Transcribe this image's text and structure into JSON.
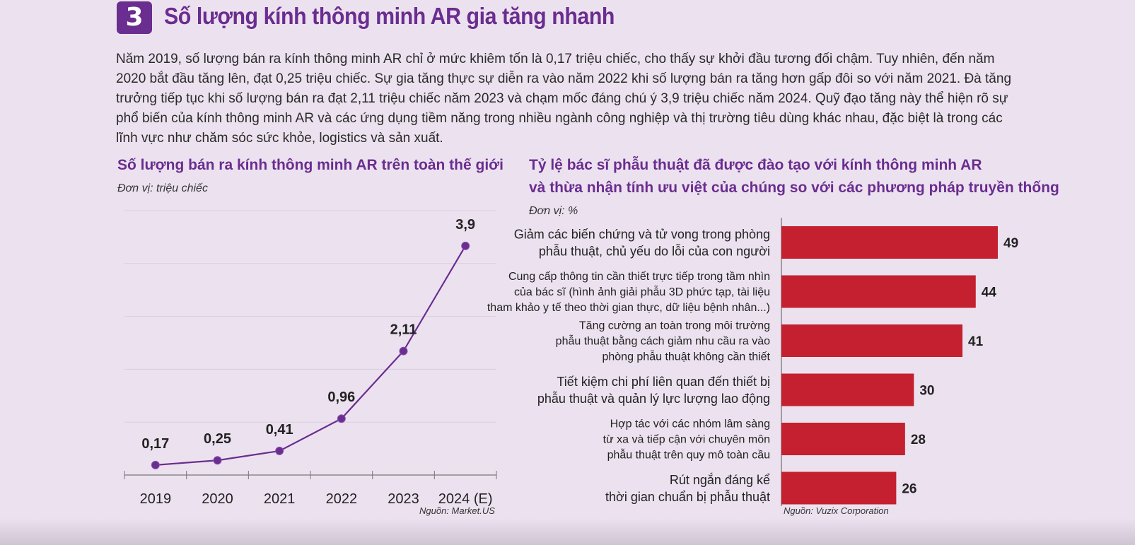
{
  "section": {
    "number": "3",
    "title": "Số lượng kính thông minh AR gia tăng nhanh",
    "intro": "Năm 2019, số lượng bán ra kính thông minh AR chỉ ở mức khiêm tốn là 0,17 triệu chiếc, cho thấy sự khởi đầu tương đối chậm. Tuy nhiên, đến năm 2020 bắt đầu tăng lên, đạt 0,25 triệu chiếc. Sự gia tăng thực sự diễn ra vào năm 2022 khi số lượng bán ra tăng hơn gấp đôi so với năm 2021. Đà tăng trưởng tiếp tục khi số lượng bán ra đạt 2,11 triệu chiếc năm 2023 và chạm mốc đáng chú ý 3,9 triệu chiếc năm 2024. Quỹ đạo tăng này thể hiện rõ sự phổ biến của kính thông minh AR và các ứng dụng tiềm năng trong nhiều ngành công nghiệp và thị trường tiêu dùng khác nhau, đặc biệt là trong các lĩnh vực như chăm sóc sức khỏe, logistics và sản xuất."
  },
  "colors": {
    "purple": "#6a2d90",
    "bar": "#c4202f",
    "grid": "#d9cde0"
  },
  "chart_data": [
    {
      "type": "line",
      "title": "Số lượng bán ra kính thông minh AR trên toàn thế giới",
      "unit": "Đơn vị: triệu chiếc",
      "source": "Nguồn: Market.US",
      "categories": [
        "2019",
        "2020",
        "2021",
        "2022",
        "2023",
        "2024 (E)"
      ],
      "values": [
        0.17,
        0.25,
        0.41,
        0.96,
        2.11,
        3.9
      ],
      "value_labels": [
        "0,17",
        "0,25",
        "0,41",
        "0,96",
        "2,11",
        "3,9"
      ],
      "ylim": [
        0,
        4.5
      ],
      "grid": true,
      "color": "#6a2d90"
    },
    {
      "type": "bar",
      "orientation": "horizontal",
      "title_lines": [
        "Tỷ lệ bác sĩ phẫu thuật đã được đào tạo với kính thông minh AR",
        "và thừa nhận tính ưu việt của chúng so với các phương pháp truyền thống"
      ],
      "unit": "Đơn vị: %",
      "source": "Nguồn: Vuzix Corporation",
      "categories": [
        [
          "Giảm các biến chứng và tử vong trong phòng",
          "phẫu thuật, chủ yếu do lỗi của con người"
        ],
        [
          "Cung cấp thông tin cần thiết trực tiếp trong tầm nhìn",
          "của bác sĩ (hình ảnh giải phẫu 3D phức tạp, tài liệu",
          "tham khảo y tế theo thời gian thực, dữ liệu bệnh nhân...)"
        ],
        [
          "Tăng cường an toàn trong môi trường",
          "phẫu thuật bằng cách giảm nhu cầu ra vào",
          "phòng phẫu thuật không cần thiết"
        ],
        [
          "Tiết kiệm chi phí liên quan đến thiết bị",
          "phẫu thuật và quản lý lực lượng lao động"
        ],
        [
          "Hợp tác với các nhóm lâm sàng",
          "từ xa và tiếp cận với chuyên môn",
          "phẫu thuật trên quy mô toàn cầu"
        ],
        [
          "Rút ngắn đáng kể",
          "thời gian chuẩn bị phẫu thuật"
        ]
      ],
      "values": [
        49,
        44,
        41,
        30,
        28,
        26
      ],
      "color": "#c4202f"
    }
  ]
}
